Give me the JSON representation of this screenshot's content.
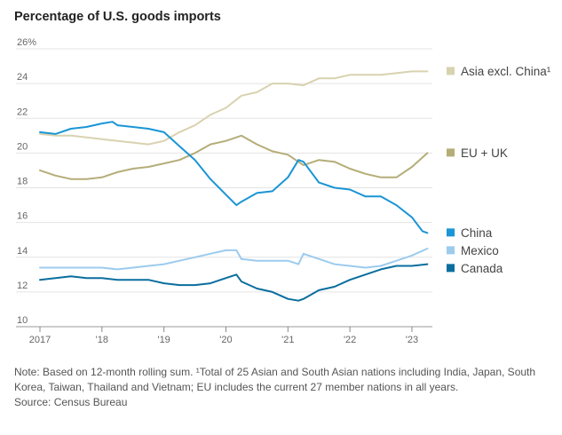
{
  "title": "Percentage of U.S. goods imports",
  "note": "Note: Based on 12-month rolling sum. ¹Total of 25 Asian and South Asian nations including India, Japan, South Korea, Taiwan, Thailand and Vietnam; EU includes the current 27 member nations in all years.",
  "source": "Source: Census Bureau",
  "chart_data": {
    "type": "line",
    "title": "Percentage of U.S. goods imports",
    "xlabel": "",
    "ylabel": "",
    "ylim": [
      10,
      26
    ],
    "xlim": [
      2017.0,
      2023.33
    ],
    "grid": true,
    "legend_placement": "right, next to line ends",
    "y_ticks": [
      "10",
      "12",
      "14",
      "16",
      "18",
      "20",
      "22",
      "24",
      "26%"
    ],
    "x_ticks": [
      {
        "x": 2017,
        "label": "2017"
      },
      {
        "x": 2018,
        "label": "'18"
      },
      {
        "x": 2019,
        "label": "'19"
      },
      {
        "x": 2020,
        "label": "'20"
      },
      {
        "x": 2021,
        "label": "'21"
      },
      {
        "x": 2022,
        "label": "'22"
      },
      {
        "x": 2023,
        "label": "'23"
      }
    ],
    "series": [
      {
        "name": "Asia excl. China¹",
        "color": "#d9d2b0",
        "points": [
          [
            2017.0,
            21.1
          ],
          [
            2017.25,
            21.0
          ],
          [
            2017.5,
            21.0
          ],
          [
            2017.75,
            20.9
          ],
          [
            2018.0,
            20.8
          ],
          [
            2018.25,
            20.7
          ],
          [
            2018.5,
            20.6
          ],
          [
            2018.75,
            20.5
          ],
          [
            2019.0,
            20.7
          ],
          [
            2019.25,
            21.2
          ],
          [
            2019.5,
            21.6
          ],
          [
            2019.75,
            22.2
          ],
          [
            2020.0,
            22.6
          ],
          [
            2020.25,
            23.3
          ],
          [
            2020.5,
            23.5
          ],
          [
            2020.75,
            24.0
          ],
          [
            2021.0,
            24.0
          ],
          [
            2021.25,
            23.9
          ],
          [
            2021.5,
            24.3
          ],
          [
            2021.75,
            24.3
          ],
          [
            2022.0,
            24.5
          ],
          [
            2022.25,
            24.5
          ],
          [
            2022.5,
            24.5
          ],
          [
            2022.75,
            24.6
          ],
          [
            2023.0,
            24.7
          ],
          [
            2023.25,
            24.7
          ]
        ]
      },
      {
        "name": "EU + UK",
        "color": "#b5ad78",
        "points": [
          [
            2017.0,
            19.0
          ],
          [
            2017.25,
            18.7
          ],
          [
            2017.5,
            18.5
          ],
          [
            2017.75,
            18.5
          ],
          [
            2018.0,
            18.6
          ],
          [
            2018.25,
            18.9
          ],
          [
            2018.5,
            19.1
          ],
          [
            2018.75,
            19.2
          ],
          [
            2019.0,
            19.4
          ],
          [
            2019.25,
            19.6
          ],
          [
            2019.5,
            20.0
          ],
          [
            2019.75,
            20.5
          ],
          [
            2020.0,
            20.7
          ],
          [
            2020.25,
            21.0
          ],
          [
            2020.5,
            20.5
          ],
          [
            2020.75,
            20.1
          ],
          [
            2021.0,
            19.9
          ],
          [
            2021.25,
            19.3
          ],
          [
            2021.5,
            19.6
          ],
          [
            2021.75,
            19.5
          ],
          [
            2022.0,
            19.1
          ],
          [
            2022.25,
            18.8
          ],
          [
            2022.5,
            18.6
          ],
          [
            2022.75,
            18.6
          ],
          [
            2023.0,
            19.2
          ],
          [
            2023.25,
            20.0
          ]
        ]
      },
      {
        "name": "China",
        "color": "#1a95d5",
        "points": [
          [
            2017.0,
            21.2
          ],
          [
            2017.25,
            21.1
          ],
          [
            2017.5,
            21.4
          ],
          [
            2017.75,
            21.5
          ],
          [
            2018.0,
            21.7
          ],
          [
            2018.17,
            21.8
          ],
          [
            2018.25,
            21.6
          ],
          [
            2018.5,
            21.5
          ],
          [
            2018.75,
            21.4
          ],
          [
            2019.0,
            21.2
          ],
          [
            2019.25,
            20.4
          ],
          [
            2019.5,
            19.6
          ],
          [
            2019.75,
            18.5
          ],
          [
            2020.0,
            17.6
          ],
          [
            2020.17,
            17.0
          ],
          [
            2020.25,
            17.2
          ],
          [
            2020.5,
            17.7
          ],
          [
            2020.75,
            17.8
          ],
          [
            2021.0,
            18.6
          ],
          [
            2021.17,
            19.6
          ],
          [
            2021.25,
            19.5
          ],
          [
            2021.5,
            18.3
          ],
          [
            2021.75,
            18.0
          ],
          [
            2022.0,
            17.9
          ],
          [
            2022.25,
            17.5
          ],
          [
            2022.5,
            17.5
          ],
          [
            2022.75,
            17.0
          ],
          [
            2023.0,
            16.3
          ],
          [
            2023.17,
            15.5
          ],
          [
            2023.25,
            15.4
          ]
        ]
      },
      {
        "name": "Mexico",
        "color": "#9ccbee",
        "points": [
          [
            2017.0,
            13.4
          ],
          [
            2017.25,
            13.4
          ],
          [
            2017.5,
            13.4
          ],
          [
            2017.75,
            13.4
          ],
          [
            2018.0,
            13.4
          ],
          [
            2018.25,
            13.3
          ],
          [
            2018.5,
            13.4
          ],
          [
            2018.75,
            13.5
          ],
          [
            2019.0,
            13.6
          ],
          [
            2019.25,
            13.8
          ],
          [
            2019.5,
            14.0
          ],
          [
            2019.75,
            14.2
          ],
          [
            2020.0,
            14.4
          ],
          [
            2020.17,
            14.4
          ],
          [
            2020.25,
            13.9
          ],
          [
            2020.5,
            13.8
          ],
          [
            2020.75,
            13.8
          ],
          [
            2021.0,
            13.8
          ],
          [
            2021.17,
            13.6
          ],
          [
            2021.25,
            14.2
          ],
          [
            2021.5,
            13.9
          ],
          [
            2021.75,
            13.6
          ],
          [
            2022.0,
            13.5
          ],
          [
            2022.25,
            13.4
          ],
          [
            2022.5,
            13.5
          ],
          [
            2022.75,
            13.8
          ],
          [
            2023.0,
            14.1
          ],
          [
            2023.25,
            14.5
          ]
        ]
      },
      {
        "name": "Canada",
        "color": "#0a6e9e",
        "points": [
          [
            2017.0,
            12.7
          ],
          [
            2017.25,
            12.8
          ],
          [
            2017.5,
            12.9
          ],
          [
            2017.75,
            12.8
          ],
          [
            2018.0,
            12.8
          ],
          [
            2018.25,
            12.7
          ],
          [
            2018.5,
            12.7
          ],
          [
            2018.75,
            12.7
          ],
          [
            2019.0,
            12.5
          ],
          [
            2019.25,
            12.4
          ],
          [
            2019.5,
            12.4
          ],
          [
            2019.75,
            12.5
          ],
          [
            2020.0,
            12.8
          ],
          [
            2020.17,
            13.0
          ],
          [
            2020.25,
            12.6
          ],
          [
            2020.5,
            12.2
          ],
          [
            2020.75,
            12.0
          ],
          [
            2021.0,
            11.6
          ],
          [
            2021.17,
            11.5
          ],
          [
            2021.25,
            11.6
          ],
          [
            2021.5,
            12.1
          ],
          [
            2021.75,
            12.3
          ],
          [
            2022.0,
            12.7
          ],
          [
            2022.25,
            13.0
          ],
          [
            2022.5,
            13.3
          ],
          [
            2022.75,
            13.5
          ],
          [
            2023.0,
            13.5
          ],
          [
            2023.25,
            13.6
          ]
        ]
      }
    ]
  }
}
